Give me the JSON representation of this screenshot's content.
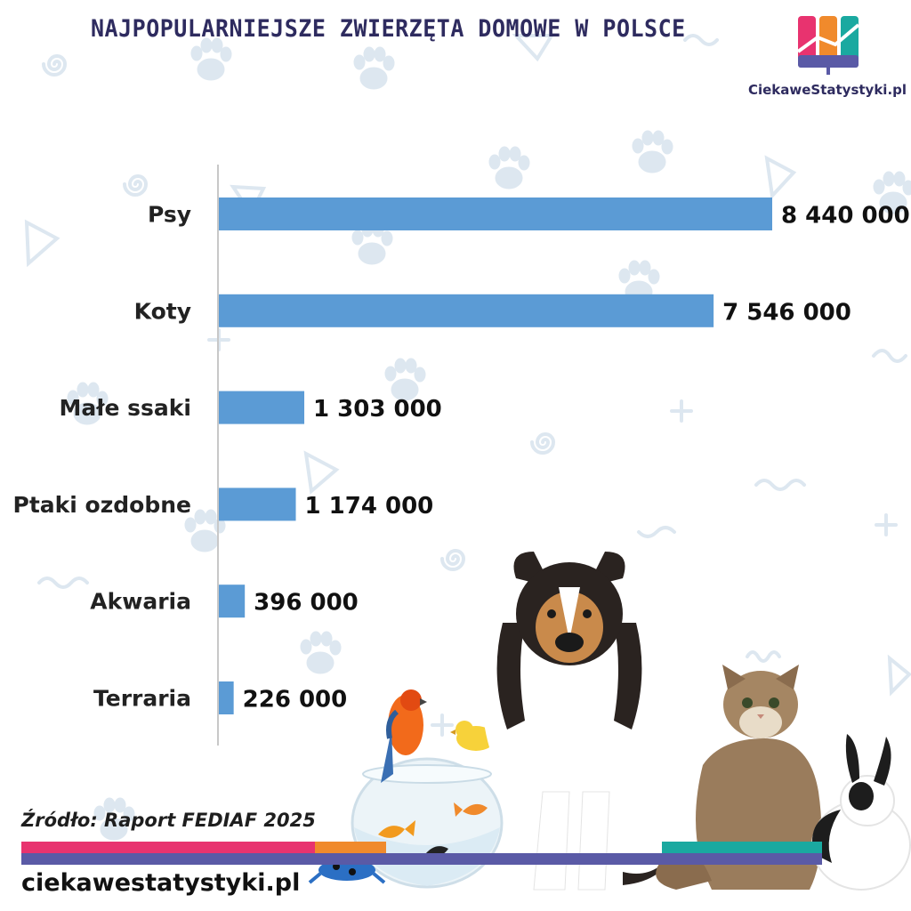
{
  "header": {
    "title": "NAJPOPULARNIEJSZE ZWIERZĘTA DOMOWE W POLSCE",
    "logo_text": "CiekaweStatystyki.pl"
  },
  "footer": {
    "source": "Źródło: Raport FEDIAF 2025",
    "site": "ciekawestatystyki.pl"
  },
  "colors": {
    "bar": "#5b9bd5",
    "title": "#2e2b5f",
    "decor": "#dde7f0",
    "stripe_pink": "#e8336f",
    "stripe_orange": "#f08a2c",
    "stripe_teal": "#1aa9a0",
    "stripe_purple": "#5a5aa6"
  },
  "chart_data": {
    "type": "bar",
    "orientation": "horizontal",
    "title": "",
    "xlabel": "",
    "ylabel": "",
    "categories": [
      "Psy",
      "Koty",
      "Małe ssaki",
      "Ptaki ozdobne",
      "Akwaria",
      "Terraria"
    ],
    "values": [
      8440000,
      7546000,
      1303000,
      1174000,
      396000,
      226000
    ],
    "value_labels": [
      "8 440 000",
      "7 546 000",
      "1 303 000",
      "1 174 000",
      "396 000",
      "226 000"
    ],
    "xlim": [
      0,
      8440000
    ],
    "grid": false,
    "legend": "none"
  },
  "illustration": {
    "icons": [
      "fishbowl-icon",
      "goldfish-icon",
      "parrot-icon",
      "canary-icon",
      "dog-icon",
      "cat-icon",
      "rabbit-icon",
      "frog-icon"
    ]
  }
}
